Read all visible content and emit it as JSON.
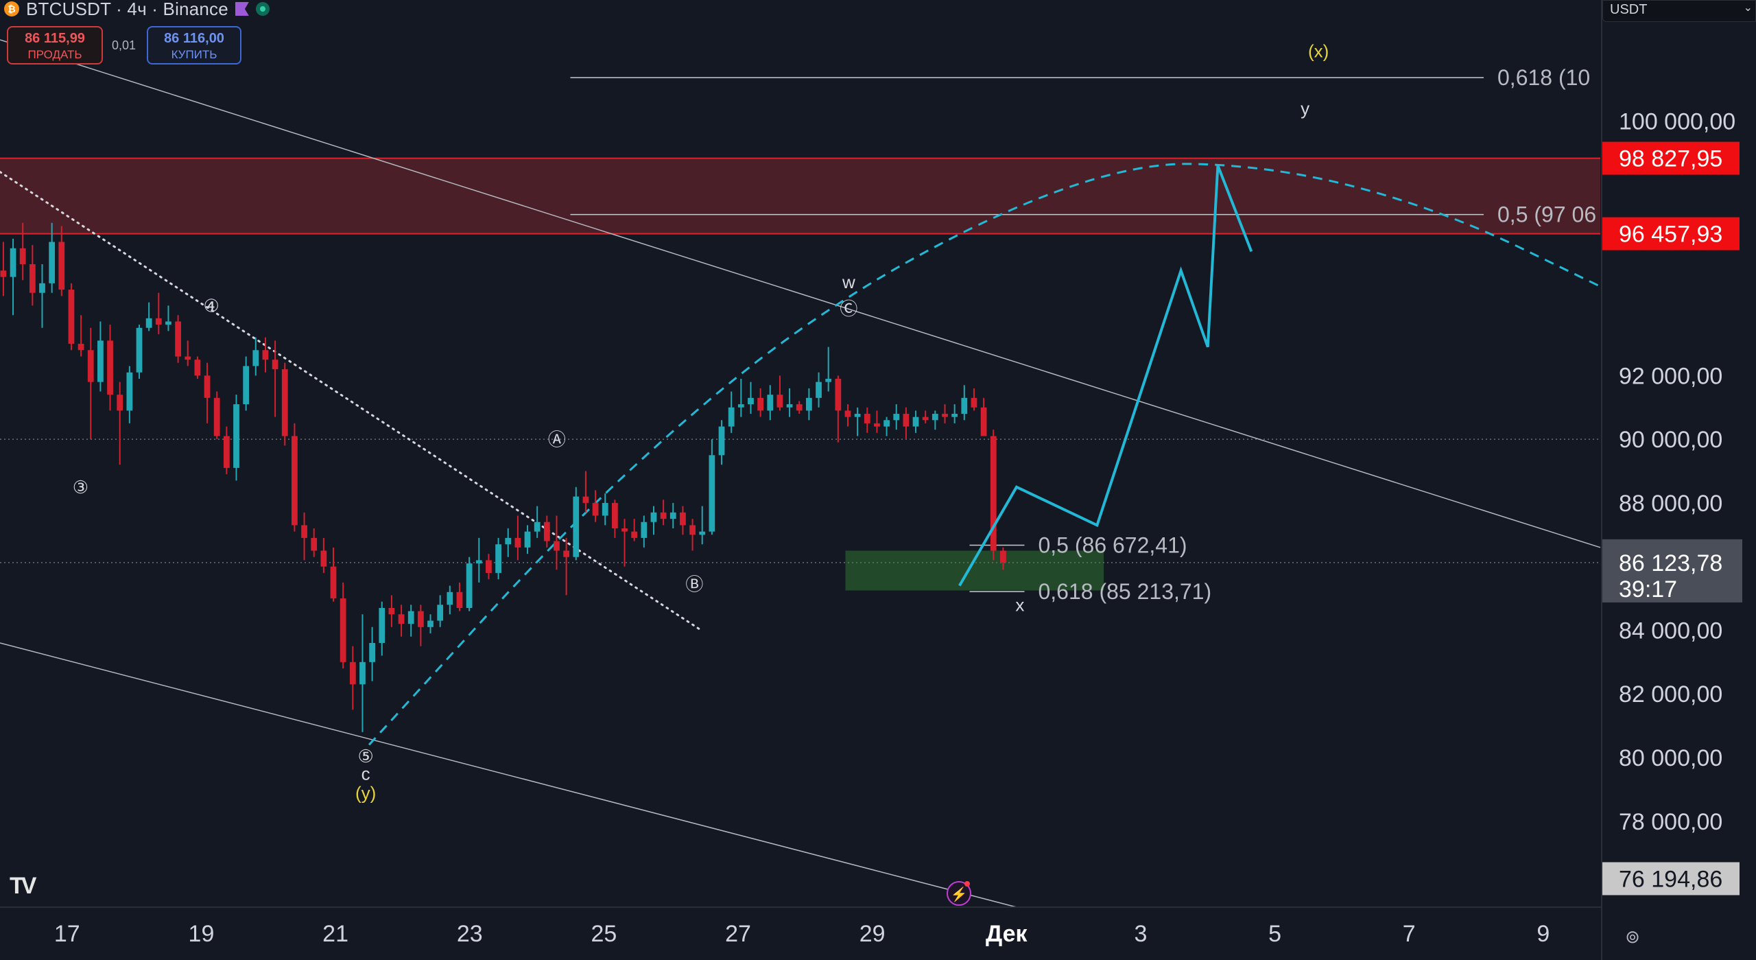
{
  "header": {
    "title": "BTCUSDT · 4ч · Binance",
    "sell_price": "86 115,99",
    "sell_label": "ПРОДАТЬ",
    "spread": "0,01",
    "buy_price": "86 116,00",
    "buy_label": "КУПИТЬ",
    "currency": "USDT"
  },
  "colors": {
    "background": "#141822",
    "bull": "#22a7b4",
    "bear": "#d4202e",
    "projection": "#22b8d6",
    "resistance_zone": "#4a1f28",
    "support_zone": "#24502b",
    "label_yellow": "#e7d53a",
    "price_badge_red": "#f10e12",
    "current_price_badge": "#4a4e59",
    "low_price_badge": "#c8c8c8"
  },
  "chart_data": {
    "type": "candlestick",
    "interval": "4h",
    "ylim": [
      75300,
      103800
    ],
    "price_ticks": [
      "100 000,00",
      "92 000,00",
      "90 000,00",
      "88 000,00",
      "84 000,00",
      "82 000,00",
      "80 000,00",
      "78 000,00"
    ],
    "price_tick_values": [
      100000,
      92000,
      90000,
      88000,
      84000,
      82000,
      80000,
      78000
    ],
    "date_ticks": [
      "17",
      "19",
      "21",
      "23",
      "25",
      "27",
      "29",
      "Дек",
      "3",
      "5",
      "7",
      "9"
    ],
    "date_tick_days": [
      17,
      19,
      21,
      23,
      25,
      27,
      29,
      31,
      33,
      35,
      37,
      39
    ],
    "x_domain_days": [
      16.0,
      39.85
    ],
    "candles": [
      {
        "o": 95300,
        "h": 96200,
        "l": 94500,
        "c": 95100
      },
      {
        "o": 95100,
        "h": 96300,
        "l": 93900,
        "c": 96000
      },
      {
        "o": 96000,
        "h": 96800,
        "l": 95000,
        "c": 95500
      },
      {
        "o": 95500,
        "h": 96100,
        "l": 94200,
        "c": 94600
      },
      {
        "o": 94600,
        "h": 95500,
        "l": 93500,
        "c": 94900
      },
      {
        "o": 94900,
        "h": 96800,
        "l": 94600,
        "c": 96200
      },
      {
        "o": 96200,
        "h": 96700,
        "l": 94500,
        "c": 94700
      },
      {
        "o": 94700,
        "h": 94900,
        "l": 92800,
        "c": 93000
      },
      {
        "o": 93000,
        "h": 93900,
        "l": 92600,
        "c": 92800
      },
      {
        "o": 92800,
        "h": 93500,
        "l": 90000,
        "c": 91800
      },
      {
        "o": 91800,
        "h": 93700,
        "l": 91500,
        "c": 93100
      },
      {
        "o": 93100,
        "h": 93600,
        "l": 90900,
        "c": 91400
      },
      {
        "o": 91400,
        "h": 91800,
        "l": 89200,
        "c": 90900
      },
      {
        "o": 90900,
        "h": 92300,
        "l": 90500,
        "c": 92100
      },
      {
        "o": 92100,
        "h": 93600,
        "l": 91900,
        "c": 93500
      },
      {
        "o": 93500,
        "h": 94300,
        "l": 93400,
        "c": 93800
      },
      {
        "o": 93800,
        "h": 94600,
        "l": 93300,
        "c": 93600
      },
      {
        "o": 93600,
        "h": 94200,
        "l": 93400,
        "c": 93700
      },
      {
        "o": 93700,
        "h": 93900,
        "l": 92400,
        "c": 92600
      },
      {
        "o": 92600,
        "h": 93100,
        "l": 92300,
        "c": 92500
      },
      {
        "o": 92500,
        "h": 92600,
        "l": 91900,
        "c": 92000
      },
      {
        "o": 92000,
        "h": 92400,
        "l": 90500,
        "c": 91300
      },
      {
        "o": 91300,
        "h": 91500,
        "l": 90000,
        "c": 90100
      },
      {
        "o": 90100,
        "h": 90400,
        "l": 88900,
        "c": 89100
      },
      {
        "o": 89100,
        "h": 91400,
        "l": 88700,
        "c": 91100
      },
      {
        "o": 91100,
        "h": 92600,
        "l": 90900,
        "c": 92300
      },
      {
        "o": 92300,
        "h": 93200,
        "l": 92000,
        "c": 92800
      },
      {
        "o": 92800,
        "h": 93200,
        "l": 92100,
        "c": 92500
      },
      {
        "o": 92500,
        "h": 93100,
        "l": 90700,
        "c": 92200
      },
      {
        "o": 92200,
        "h": 92400,
        "l": 89800,
        "c": 90100
      },
      {
        "o": 90100,
        "h": 90500,
        "l": 87100,
        "c": 87300
      },
      {
        "o": 87300,
        "h": 87700,
        "l": 86200,
        "c": 86900
      },
      {
        "o": 86900,
        "h": 87200,
        "l": 86300,
        "c": 86500
      },
      {
        "o": 86500,
        "h": 86900,
        "l": 85800,
        "c": 86000
      },
      {
        "o": 86000,
        "h": 86600,
        "l": 84900,
        "c": 85000
      },
      {
        "o": 85000,
        "h": 85500,
        "l": 82800,
        "c": 83000
      },
      {
        "o": 83000,
        "h": 83500,
        "l": 81500,
        "c": 82300
      },
      {
        "o": 82300,
        "h": 84500,
        "l": 80800,
        "c": 83000
      },
      {
        "o": 83000,
        "h": 84100,
        "l": 82400,
        "c": 83600
      },
      {
        "o": 83600,
        "h": 84900,
        "l": 83200,
        "c": 84700
      },
      {
        "o": 84700,
        "h": 85100,
        "l": 84100,
        "c": 84500
      },
      {
        "o": 84500,
        "h": 84800,
        "l": 83800,
        "c": 84200
      },
      {
        "o": 84200,
        "h": 84800,
        "l": 83800,
        "c": 84600
      },
      {
        "o": 84600,
        "h": 84800,
        "l": 83500,
        "c": 84100
      },
      {
        "o": 84100,
        "h": 84500,
        "l": 83900,
        "c": 84300
      },
      {
        "o": 84300,
        "h": 85100,
        "l": 84100,
        "c": 84800
      },
      {
        "o": 84800,
        "h": 85400,
        "l": 84500,
        "c": 85200
      },
      {
        "o": 85200,
        "h": 85500,
        "l": 84600,
        "c": 84700
      },
      {
        "o": 84700,
        "h": 86300,
        "l": 84600,
        "c": 86100
      },
      {
        "o": 86100,
        "h": 86900,
        "l": 85500,
        "c": 86200
      },
      {
        "o": 86200,
        "h": 86400,
        "l": 85600,
        "c": 85800
      },
      {
        "o": 85800,
        "h": 86900,
        "l": 85600,
        "c": 86700
      },
      {
        "o": 86700,
        "h": 87200,
        "l": 86300,
        "c": 86900
      },
      {
        "o": 86900,
        "h": 87600,
        "l": 86200,
        "c": 86600
      },
      {
        "o": 86600,
        "h": 87300,
        "l": 86400,
        "c": 87100
      },
      {
        "o": 87100,
        "h": 87900,
        "l": 86900,
        "c": 87400
      },
      {
        "o": 87400,
        "h": 87600,
        "l": 86600,
        "c": 86800
      },
      {
        "o": 86800,
        "h": 87600,
        "l": 85900,
        "c": 86500
      },
      {
        "o": 86500,
        "h": 86900,
        "l": 85100,
        "c": 86300
      },
      {
        "o": 86300,
        "h": 88500,
        "l": 86200,
        "c": 88200
      },
      {
        "o": 88200,
        "h": 89000,
        "l": 87700,
        "c": 88000
      },
      {
        "o": 88000,
        "h": 88400,
        "l": 87400,
        "c": 87600
      },
      {
        "o": 87600,
        "h": 88300,
        "l": 87300,
        "c": 88000
      },
      {
        "o": 88000,
        "h": 88100,
        "l": 86900,
        "c": 87200
      },
      {
        "o": 87200,
        "h": 87500,
        "l": 86000,
        "c": 87100
      },
      {
        "o": 87100,
        "h": 87500,
        "l": 86800,
        "c": 86900
      },
      {
        "o": 86900,
        "h": 87600,
        "l": 86600,
        "c": 87400
      },
      {
        "o": 87400,
        "h": 87900,
        "l": 87000,
        "c": 87700
      },
      {
        "o": 87700,
        "h": 88100,
        "l": 87300,
        "c": 87500
      },
      {
        "o": 87500,
        "h": 88000,
        "l": 87200,
        "c": 87700
      },
      {
        "o": 87700,
        "h": 87900,
        "l": 87000,
        "c": 87300
      },
      {
        "o": 87300,
        "h": 87500,
        "l": 86500,
        "c": 87000
      },
      {
        "o": 87000,
        "h": 87900,
        "l": 86700,
        "c": 87100
      },
      {
        "o": 87100,
        "h": 90000,
        "l": 87000,
        "c": 89500
      },
      {
        "o": 89500,
        "h": 90600,
        "l": 89200,
        "c": 90400
      },
      {
        "o": 90400,
        "h": 91500,
        "l": 90200,
        "c": 91000
      },
      {
        "o": 91000,
        "h": 91900,
        "l": 90700,
        "c": 91100
      },
      {
        "o": 91100,
        "h": 91800,
        "l": 90800,
        "c": 91300
      },
      {
        "o": 91300,
        "h": 91600,
        "l": 90700,
        "c": 90900
      },
      {
        "o": 90900,
        "h": 91700,
        "l": 90600,
        "c": 91400
      },
      {
        "o": 91400,
        "h": 92000,
        "l": 90900,
        "c": 91000
      },
      {
        "o": 91000,
        "h": 91600,
        "l": 90700,
        "c": 91100
      },
      {
        "o": 91100,
        "h": 91200,
        "l": 90800,
        "c": 90900
      },
      {
        "o": 90900,
        "h": 91600,
        "l": 90600,
        "c": 91300
      },
      {
        "o": 91300,
        "h": 92100,
        "l": 91000,
        "c": 91800
      },
      {
        "o": 91800,
        "h": 92900,
        "l": 91500,
        "c": 91900
      },
      {
        "o": 91900,
        "h": 92000,
        "l": 89900,
        "c": 90900
      },
      {
        "o": 90900,
        "h": 91100,
        "l": 90400,
        "c": 90700
      },
      {
        "o": 90700,
        "h": 91000,
        "l": 90100,
        "c": 90800
      },
      {
        "o": 90800,
        "h": 91000,
        "l": 90200,
        "c": 90500
      },
      {
        "o": 90500,
        "h": 90900,
        "l": 90200,
        "c": 90400
      },
      {
        "o": 90400,
        "h": 90700,
        "l": 90100,
        "c": 90600
      },
      {
        "o": 90600,
        "h": 91100,
        "l": 90300,
        "c": 90800
      },
      {
        "o": 90800,
        "h": 91000,
        "l": 90000,
        "c": 90400
      },
      {
        "o": 90400,
        "h": 90900,
        "l": 90200,
        "c": 90700
      },
      {
        "o": 90700,
        "h": 90900,
        "l": 90500,
        "c": 90600
      },
      {
        "o": 90600,
        "h": 90900,
        "l": 90300,
        "c": 90800
      },
      {
        "o": 90800,
        "h": 91100,
        "l": 90500,
        "c": 90700
      },
      {
        "o": 90700,
        "h": 91100,
        "l": 90500,
        "c": 90800
      },
      {
        "o": 90800,
        "h": 91700,
        "l": 90600,
        "c": 91300
      },
      {
        "o": 91300,
        "h": 91600,
        "l": 90900,
        "c": 91000
      },
      {
        "o": 91000,
        "h": 91300,
        "l": 90200,
        "c": 90100
      },
      {
        "o": 90100,
        "h": 90300,
        "l": 86200,
        "c": 86500
      },
      {
        "o": 86500,
        "h": 86600,
        "l": 85900,
        "c": 86124
      }
    ],
    "price_badges": [
      {
        "label": "98 827,95",
        "value": 98827.95,
        "style": "red"
      },
      {
        "label": "96 457,93",
        "value": 96457.93,
        "style": "red"
      },
      {
        "label": "76 194,86",
        "value": 76194.86,
        "style": "light"
      }
    ],
    "current_price": {
      "label": "86 123,78",
      "countdown": "39:17",
      "value": 86123.78
    },
    "resistance_zone": {
      "top": 98827.95,
      "bottom": 96457.93
    },
    "support_zone": {
      "top": 86500,
      "bottom": 85250,
      "x0": 28.6,
      "x1": 32.45
    },
    "fib_levels": [
      {
        "label": "0,618 (10",
        "value": 101360,
        "x0": 24.5
      },
      {
        "label": "0,5 (97 06",
        "value": 97060,
        "x0": 24.5
      },
      {
        "label": "0,5 (86 672,41)",
        "value": 86672.41,
        "x0": 30.45
      },
      {
        "label": "0,618 (85 213,71)",
        "value": 85213.71,
        "x0": 30.45
      }
    ],
    "wave_labels": [
      {
        "text": "(x)",
        "day": 35.65,
        "price": 102000,
        "color": "yellow"
      },
      {
        "text": "y",
        "day": 35.45,
        "price": 100200,
        "color": "white"
      },
      {
        "text": "w",
        "day": 28.65,
        "price": 94750,
        "color": "white"
      },
      {
        "text": "Ⓒ",
        "day": 28.65,
        "price": 93900,
        "color": "white"
      },
      {
        "text": "④",
        "day": 19.15,
        "price": 94000,
        "color": "white"
      },
      {
        "text": "Ⓐ",
        "day": 24.3,
        "price": 89800,
        "color": "white"
      },
      {
        "text": "③",
        "day": 17.2,
        "price": 88300,
        "color": "white"
      },
      {
        "text": "Ⓑ",
        "day": 26.35,
        "price": 85250,
        "color": "white"
      },
      {
        "text": "x",
        "day": 31.2,
        "price": 84600,
        "color": "white"
      },
      {
        "text": "⑤",
        "day": 21.45,
        "price": 79850,
        "color": "white"
      },
      {
        "text": "c",
        "day": 21.45,
        "price": 79300,
        "color": "white"
      },
      {
        "text": "(y)",
        "day": 21.45,
        "price": 78700,
        "color": "yellow"
      }
    ],
    "projection_path": [
      {
        "day": 30.3,
        "price": 85400
      },
      {
        "day": 31.15,
        "price": 88500
      },
      {
        "day": 32.35,
        "price": 87300
      },
      {
        "day": 33.6,
        "price": 95300
      },
      {
        "day": 34.0,
        "price": 92900
      },
      {
        "day": 34.15,
        "price": 98600
      },
      {
        "day": 34.65,
        "price": 95900
      }
    ],
    "curve_path": [
      {
        "day": 21.5,
        "price": 80400
      },
      {
        "day": 25.0,
        "price": 88500
      },
      {
        "day": 28.5,
        "price": 94600
      },
      {
        "day": 32.5,
        "price": 98700
      },
      {
        "day": 35.0,
        "price": 98600
      },
      {
        "day": 37.5,
        "price": 97200
      },
      {
        "day": 39.85,
        "price": 94800
      }
    ],
    "trend_lines": [
      {
        "style": "solid",
        "points": [
          {
            "day": 16.0,
            "price": 102550
          },
          {
            "day": 39.85,
            "price": 86600
          }
        ]
      },
      {
        "style": "solid",
        "points": [
          {
            "day": 16.0,
            "price": 83600
          },
          {
            "day": 31.15,
            "price": 75300
          }
        ]
      },
      {
        "style": "dotted",
        "points": [
          {
            "day": 16.0,
            "price": 98400
          },
          {
            "day": 26.45,
            "price": 84000
          }
        ]
      }
    ],
    "horizontal_levels": [
      {
        "value": 90000,
        "style": "dotted"
      },
      {
        "value": 86123.78,
        "style": "dotted"
      }
    ]
  }
}
